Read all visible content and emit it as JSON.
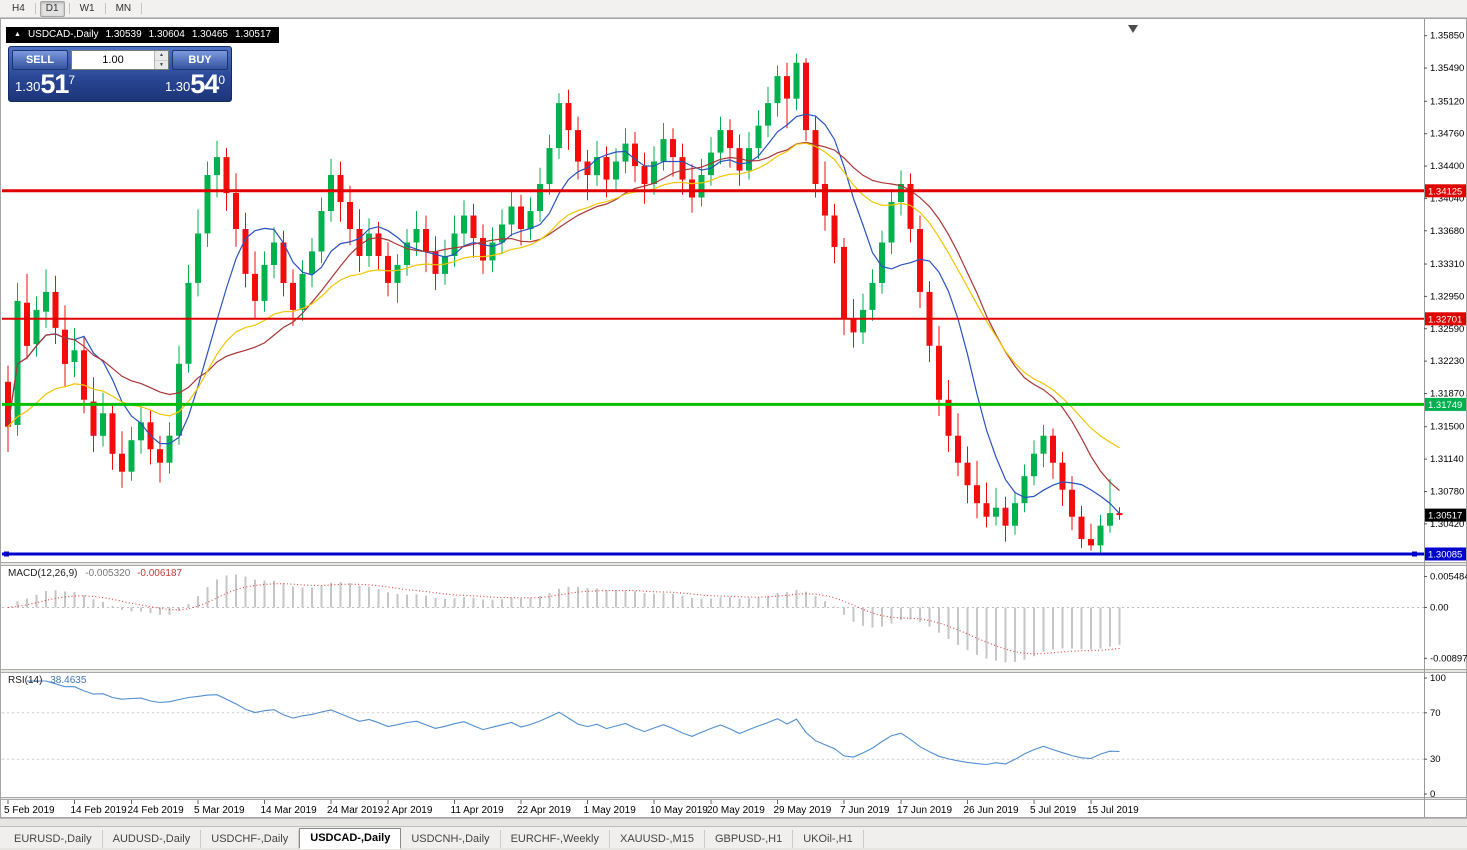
{
  "toolbar": {
    "timeframes": [
      {
        "label": "H4",
        "active": false
      },
      {
        "label": "D1",
        "active": true
      },
      {
        "label": "W1",
        "active": false
      },
      {
        "label": "MN",
        "active": false
      }
    ]
  },
  "ohlc_bar": {
    "symbol_period": "USDCAD-,Daily",
    "open": "1.30539",
    "high": "1.30604",
    "low": "1.30465",
    "close": "1.30517"
  },
  "one_click": {
    "sell_label": "SELL",
    "buy_label": "BUY",
    "volume": "1.00",
    "bid": {
      "big": "1.30",
      "pips": "51",
      "sup": "7"
    },
    "ask": {
      "big": "1.30",
      "pips": "54",
      "sup": "0"
    }
  },
  "indicators": {
    "macd": {
      "label": "MACD(12,26,9)",
      "main_value": "-0.005320",
      "signal_value": "-0.006187",
      "axis_labels": [
        "0.005484",
        "0.00",
        "-0.008973"
      ],
      "axis_values": [
        0.005484,
        0,
        -0.008973
      ]
    },
    "rsi": {
      "label": "RSI(14)",
      "value": "38.4635",
      "axis_labels": [
        "100",
        "70",
        "30",
        "0"
      ],
      "axis_values": [
        100,
        70,
        30,
        0
      ],
      "levels": [
        70,
        30
      ]
    }
  },
  "price_axis": {
    "labels": [
      "1.35850",
      "1.35490",
      "1.35120",
      "1.34760",
      "1.34400",
      "1.34040",
      "1.33680",
      "1.33310",
      "1.32950",
      "1.32590",
      "1.32230",
      "1.31870",
      "1.31500",
      "1.31140",
      "1.30780",
      "1.30420"
    ],
    "tags": [
      {
        "text": "1.34125",
        "price": 1.34125,
        "color": "#e00000"
      },
      {
        "text": "1.32701",
        "price": 1.32701,
        "color": "#e00000"
      },
      {
        "text": "1.31749",
        "price": 1.31749,
        "color": "#00b050"
      },
      {
        "text": "1.30517",
        "price": 1.30517,
        "color": "#000000"
      },
      {
        "text": "1.30085",
        "price": 1.30085,
        "color": "#0000cc"
      }
    ]
  },
  "hlines": [
    {
      "price": 1.34125,
      "color": "#e00000",
      "width": 3,
      "handles": false
    },
    {
      "price": 1.32701,
      "color": "#e00000",
      "width": 2,
      "handles": false
    },
    {
      "price": 1.31749,
      "color": "#00c000",
      "width": 3,
      "handles": false
    },
    {
      "price": 1.30085,
      "color": "#0000cc",
      "width": 3,
      "handles": true
    }
  ],
  "date_axis": {
    "labels": [
      {
        "text": "5 Feb 2019",
        "index": 0
      },
      {
        "text": "14 Feb 2019",
        "index": 7
      },
      {
        "text": "24 Feb 2019",
        "index": 13
      },
      {
        "text": "5 Mar 2019",
        "index": 20
      },
      {
        "text": "14 Mar 2019",
        "index": 27
      },
      {
        "text": "24 Mar 2019",
        "index": 34
      },
      {
        "text": "2 Apr 2019",
        "index": 40
      },
      {
        "text": "11 Apr 2019",
        "index": 47
      },
      {
        "text": "22 Apr 2019",
        "index": 54
      },
      {
        "text": "1 May 2019",
        "index": 61
      },
      {
        "text": "10 May 2019",
        "index": 68
      },
      {
        "text": "20 May 2019",
        "index": 74
      },
      {
        "text": "29 May 2019",
        "index": 81
      },
      {
        "text": "7 Jun 2019",
        "index": 88
      },
      {
        "text": "17 Jun 2019",
        "index": 94
      },
      {
        "text": "26 Jun 2019",
        "index": 101
      },
      {
        "text": "5 Jul 2019",
        "index": 108
      },
      {
        "text": "15 Jul 2019",
        "index": 114
      }
    ]
  },
  "tabs": [
    {
      "label": "EURUSD-,Daily",
      "active": false
    },
    {
      "label": "AUDUSD-,Daily",
      "active": false
    },
    {
      "label": "USDCHF-,Daily",
      "active": false
    },
    {
      "label": "USDCAD-,Daily",
      "active": true
    },
    {
      "label": "USDCNH-,Daily",
      "active": false
    },
    {
      "label": "EURCHF-,Weekly",
      "active": false
    },
    {
      "label": "XAUUSD-,M15",
      "active": false
    },
    {
      "label": "GBPUSD-,H1",
      "active": false
    },
    {
      "label": "UKOil-,H1",
      "active": false
    }
  ],
  "chart_data": {
    "type": "candlestick",
    "symbol": "USDCAD-",
    "period": "Daily",
    "price_range": [
      1.3004,
      1.3598
    ],
    "macd_range": [
      -0.0105,
      0.0068
    ],
    "bar_spacing": 9.5,
    "colors": {
      "up": "#00b14d",
      "down": "#f20c0c",
      "macd_hist": "#c6c6c6",
      "macd_signal": "#e04040",
      "rsi_line": "#4f8fd0"
    },
    "moving_averages": [
      {
        "name": "ma-fast",
        "period": 8,
        "method": "sma",
        "color": "#2a52c0"
      },
      {
        "name": "ma-medium",
        "period": 20,
        "method": "sma",
        "color": "#a93636"
      },
      {
        "name": "ma-slow",
        "period": 24,
        "method": "ema",
        "color": "#f2c500"
      }
    ],
    "macd_params": [
      12,
      26,
      9
    ],
    "rsi_period": 14,
    "candles": [
      [
        1.32,
        1.3218,
        1.3122,
        1.315
      ],
      [
        1.3152,
        1.331,
        1.314,
        1.329
      ],
      [
        1.3288,
        1.332,
        1.3225,
        1.324
      ],
      [
        1.3242,
        1.3295,
        1.3228,
        1.328
      ],
      [
        1.3278,
        1.3325,
        1.326,
        1.33
      ],
      [
        1.33,
        1.3318,
        1.3242,
        1.326
      ],
      [
        1.3258,
        1.3285,
        1.3195,
        1.322
      ],
      [
        1.3222,
        1.326,
        1.3205,
        1.3235
      ],
      [
        1.3235,
        1.325,
        1.3165,
        1.318
      ],
      [
        1.3178,
        1.3205,
        1.3122,
        1.314
      ],
      [
        1.314,
        1.3188,
        1.3128,
        1.3165
      ],
      [
        1.3165,
        1.3175,
        1.3102,
        1.312
      ],
      [
        1.312,
        1.3145,
        1.3082,
        1.31
      ],
      [
        1.31,
        1.315,
        1.309,
        1.3135
      ],
      [
        1.3135,
        1.3172,
        1.312,
        1.3155
      ],
      [
        1.3155,
        1.3168,
        1.3108,
        1.3125
      ],
      [
        1.3125,
        1.314,
        1.3088,
        1.311
      ],
      [
        1.311,
        1.3155,
        1.3098,
        1.314
      ],
      [
        1.314,
        1.324,
        1.313,
        1.322
      ],
      [
        1.322,
        1.333,
        1.321,
        1.331
      ],
      [
        1.331,
        1.3392,
        1.3295,
        1.3365
      ],
      [
        1.3365,
        1.3445,
        1.335,
        1.343
      ],
      [
        1.343,
        1.3468,
        1.3405,
        1.345
      ],
      [
        1.345,
        1.346,
        1.339,
        1.341
      ],
      [
        1.341,
        1.3432,
        1.335,
        1.337
      ],
      [
        1.337,
        1.3388,
        1.3305,
        1.332
      ],
      [
        1.332,
        1.3345,
        1.327,
        1.329
      ],
      [
        1.329,
        1.3345,
        1.3278,
        1.333
      ],
      [
        1.333,
        1.3372,
        1.3315,
        1.3355
      ],
      [
        1.3355,
        1.3368,
        1.3295,
        1.331
      ],
      [
        1.331,
        1.3325,
        1.3262,
        1.328
      ],
      [
        1.328,
        1.3335,
        1.3268,
        1.332
      ],
      [
        1.332,
        1.336,
        1.3305,
        1.3345
      ],
      [
        1.3345,
        1.3405,
        1.3332,
        1.339
      ],
      [
        1.339,
        1.3448,
        1.3378,
        1.343
      ],
      [
        1.343,
        1.3445,
        1.3378,
        1.34
      ],
      [
        1.34,
        1.3418,
        1.3352,
        1.337
      ],
      [
        1.337,
        1.3392,
        1.3322,
        1.334
      ],
      [
        1.334,
        1.3382,
        1.3328,
        1.3365
      ],
      [
        1.3365,
        1.3378,
        1.3325,
        1.334
      ],
      [
        1.334,
        1.3355,
        1.3295,
        1.331
      ],
      [
        1.331,
        1.3342,
        1.3288,
        1.333
      ],
      [
        1.333,
        1.337,
        1.3318,
        1.3355
      ],
      [
        1.3355,
        1.339,
        1.334,
        1.337
      ],
      [
        1.337,
        1.3385,
        1.3322,
        1.3345
      ],
      [
        1.3345,
        1.3362,
        1.3302,
        1.332
      ],
      [
        1.332,
        1.3358,
        1.3308,
        1.334
      ],
      [
        1.334,
        1.3385,
        1.3328,
        1.3365
      ],
      [
        1.3365,
        1.3402,
        1.3352,
        1.3385
      ],
      [
        1.3385,
        1.3398,
        1.3338,
        1.336
      ],
      [
        1.336,
        1.3375,
        1.332,
        1.3335
      ],
      [
        1.3335,
        1.3372,
        1.3322,
        1.3355
      ],
      [
        1.3355,
        1.3392,
        1.3342,
        1.3375
      ],
      [
        1.3375,
        1.3412,
        1.3362,
        1.3395
      ],
      [
        1.3395,
        1.3408,
        1.3352,
        1.337
      ],
      [
        1.337,
        1.3405,
        1.3358,
        1.339
      ],
      [
        1.339,
        1.3438,
        1.3378,
        1.342
      ],
      [
        1.342,
        1.3475,
        1.3408,
        1.346
      ],
      [
        1.346,
        1.3521,
        1.3448,
        1.351
      ],
      [
        1.351,
        1.3525,
        1.3458,
        1.348
      ],
      [
        1.348,
        1.3495,
        1.3425,
        1.3445
      ],
      [
        1.3445,
        1.3458,
        1.3402,
        1.343
      ],
      [
        1.343,
        1.3468,
        1.3418,
        1.345
      ],
      [
        1.345,
        1.3462,
        1.3405,
        1.3425
      ],
      [
        1.3425,
        1.346,
        1.3412,
        1.3445
      ],
      [
        1.3445,
        1.3482,
        1.3432,
        1.3465
      ],
      [
        1.3465,
        1.3478,
        1.3422,
        1.344
      ],
      [
        1.344,
        1.3455,
        1.3398,
        1.342
      ],
      [
        1.342,
        1.3462,
        1.3408,
        1.3445
      ],
      [
        1.3445,
        1.3488,
        1.3435,
        1.347
      ],
      [
        1.347,
        1.3482,
        1.3428,
        1.345
      ],
      [
        1.345,
        1.3465,
        1.3408,
        1.3425
      ],
      [
        1.3425,
        1.3442,
        1.3388,
        1.3405
      ],
      [
        1.3405,
        1.3448,
        1.3395,
        1.343
      ],
      [
        1.343,
        1.3472,
        1.3418,
        1.3455
      ],
      [
        1.3455,
        1.3495,
        1.3442,
        1.348
      ],
      [
        1.348,
        1.3492,
        1.3438,
        1.346
      ],
      [
        1.346,
        1.3475,
        1.3418,
        1.3435
      ],
      [
        1.3435,
        1.3478,
        1.3425,
        1.346
      ],
      [
        1.346,
        1.3502,
        1.3448,
        1.3485
      ],
      [
        1.3485,
        1.3528,
        1.3472,
        1.351
      ],
      [
        1.351,
        1.3552,
        1.3495,
        1.354
      ],
      [
        1.354,
        1.3555,
        1.3482,
        1.3515
      ],
      [
        1.3515,
        1.3565,
        1.3502,
        1.3555
      ],
      [
        1.3555,
        1.356,
        1.3468,
        1.348
      ],
      [
        1.348,
        1.3495,
        1.3405,
        1.342
      ],
      [
        1.342,
        1.3445,
        1.3368,
        1.3385
      ],
      [
        1.3385,
        1.3398,
        1.3332,
        1.335
      ],
      [
        1.335,
        1.336,
        1.3252,
        1.327
      ],
      [
        1.327,
        1.3292,
        1.3238,
        1.3255
      ],
      [
        1.3255,
        1.3298,
        1.3242,
        1.328
      ],
      [
        1.328,
        1.3325,
        1.3268,
        1.331
      ],
      [
        1.331,
        1.3368,
        1.3298,
        1.3355
      ],
      [
        1.3355,
        1.3412,
        1.3342,
        1.34
      ],
      [
        1.34,
        1.3435,
        1.3385,
        1.342
      ],
      [
        1.342,
        1.3432,
        1.3355,
        1.337
      ],
      [
        1.337,
        1.3385,
        1.3282,
        1.33
      ],
      [
        1.33,
        1.3312,
        1.3222,
        1.324
      ],
      [
        1.324,
        1.3262,
        1.3162,
        1.318
      ],
      [
        1.318,
        1.3202,
        1.3122,
        1.314
      ],
      [
        1.314,
        1.3165,
        1.3095,
        1.311
      ],
      [
        1.311,
        1.3128,
        1.3065,
        1.3085
      ],
      [
        1.3085,
        1.3112,
        1.3048,
        1.3065
      ],
      [
        1.3065,
        1.3088,
        1.3038,
        1.305
      ],
      [
        1.305,
        1.3082,
        1.304,
        1.306
      ],
      [
        1.306,
        1.3072,
        1.3022,
        1.304
      ],
      [
        1.304,
        1.3078,
        1.303,
        1.3065
      ],
      [
        1.3065,
        1.3108,
        1.3055,
        1.3095
      ],
      [
        1.3095,
        1.3135,
        1.3085,
        1.312
      ],
      [
        1.312,
        1.3152,
        1.3105,
        1.314
      ],
      [
        1.314,
        1.3148,
        1.3092,
        1.311
      ],
      [
        1.311,
        1.3122,
        1.3062,
        1.308
      ],
      [
        1.308,
        1.3095,
        1.3035,
        1.305
      ],
      [
        1.305,
        1.3062,
        1.3015,
        1.3025
      ],
      [
        1.3025,
        1.3042,
        1.3012,
        1.3018
      ],
      [
        1.3018,
        1.3052,
        1.301,
        1.304
      ],
      [
        1.304,
        1.3092,
        1.3032,
        1.3054
      ],
      [
        1.30539,
        1.30604,
        1.30465,
        1.30517
      ]
    ]
  }
}
